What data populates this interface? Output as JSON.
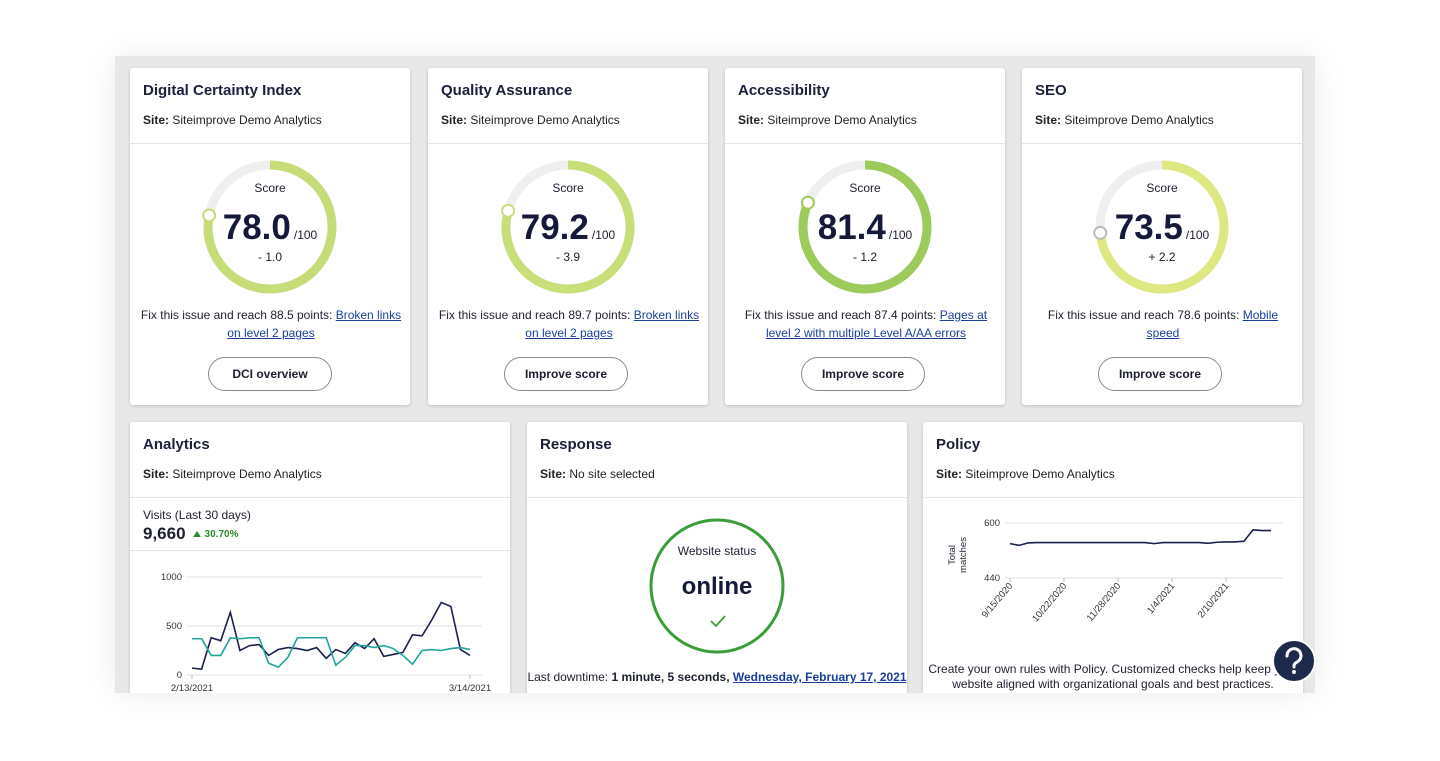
{
  "score_cards": [
    {
      "title": "Digital Certainty Index",
      "site_label": "Site:",
      "site": "Siteimprove Demo Analytics",
      "score_caption": "Score",
      "score": 78,
      "score_label": "78.0",
      "max": 100,
      "max_label": "/100",
      "change": "- 1.0",
      "color": "#c6dc78",
      "fix_text": "Fix this issue and reach 88.5 points:",
      "fix_link": "Broken links on level 2 pages",
      "button": "DCI overview"
    },
    {
      "title": "Quality Assurance",
      "site_label": "Site:",
      "site": "Siteimprove Demo Analytics",
      "score_caption": "Score",
      "score": 79.2,
      "score_label": "79.2",
      "max": 100,
      "max_label": "/100",
      "change": "- 3.9",
      "color": "#c8de78",
      "fix_text": "Fix this issue and reach 89.7 points:",
      "fix_link": "Broken links on level 2 pages",
      "button": "Improve score"
    },
    {
      "title": "Accessibility",
      "site_label": "Site:",
      "site": "Siteimprove Demo Analytics",
      "score_caption": "Score",
      "score": 81.4,
      "score_label": "81.4",
      "max": 100,
      "max_label": "/100",
      "change": "- 1.2",
      "color": "#9ccb5c",
      "fix_text": "Fix this issue and reach 87.4 points:",
      "fix_link": "Pages at level 2 with multiple Level A/AA errors",
      "button": "Improve score"
    },
    {
      "title": "SEO",
      "site_label": "Site:",
      "site": "Siteimprove Demo Analytics",
      "score_caption": "Score",
      "score": 73.5,
      "score_label": "73.5",
      "max": 100,
      "max_label": "/100",
      "change": "+ 2.2",
      "color": "#dde883",
      "fix_text": "Fix this issue and reach 78.6 points:",
      "fix_link": "Mobile speed",
      "button": "Improve score"
    }
  ],
  "analytics": {
    "title": "Analytics",
    "site_label": "Site:",
    "site": "Siteimprove Demo Analytics",
    "metric_label": "Visits (Last 30 days)",
    "metric": "9,660",
    "change": "30.70%",
    "change_color": "#2e8b2e",
    "chart": {
      "type": "line",
      "categories": [
        "2/13/2021",
        null,
        null,
        null,
        null,
        null,
        null,
        null,
        null,
        null,
        null,
        null,
        null,
        null,
        null,
        null,
        null,
        null,
        null,
        null,
        null,
        null,
        null,
        null,
        null,
        null,
        null,
        null,
        null,
        "3/14/2021"
      ],
      "series": [
        {
          "color": "#1b1f4e",
          "values": [
            70,
            60,
            380,
            350,
            640,
            250,
            300,
            310,
            200,
            260,
            280,
            270,
            250,
            280,
            170,
            260,
            220,
            330,
            270,
            370,
            190,
            210,
            230,
            410,
            400,
            560,
            740,
            700,
            260,
            200
          ]
        },
        {
          "color": "#1fa39c",
          "values": [
            370,
            370,
            200,
            200,
            380,
            370,
            380,
            380,
            120,
            80,
            180,
            380,
            380,
            380,
            380,
            100,
            180,
            300,
            300,
            280,
            300,
            270,
            200,
            110,
            250,
            260,
            250,
            270,
            280,
            260
          ]
        }
      ],
      "ylim": [
        0,
        1000
      ],
      "yticks": [
        0,
        500,
        1000
      ],
      "grid": true
    }
  },
  "response": {
    "title": "Response",
    "site_label": "Site:",
    "site": "No site selected",
    "status_label": "Website status",
    "status": "online",
    "status_color": "#3a9d3a",
    "downtime_label": "Last downtime:",
    "downtime": "1 minute, 5 seconds,",
    "downtime_link": "Wednesday, February 17, 2021"
  },
  "policy": {
    "title": "Policy",
    "site_label": "Site:",
    "site": "Siteimprove Demo Analytics",
    "chart": {
      "type": "line",
      "ylabel": "Total matches",
      "categories": [
        "9/15/2020",
        null,
        null,
        null,
        null,
        null,
        "10/22/2020",
        null,
        null,
        null,
        null,
        null,
        "11/28/2020",
        null,
        null,
        null,
        null,
        null,
        "1/4/2021",
        null,
        null,
        null,
        null,
        null,
        "2/10/2021",
        null,
        null,
        null,
        null,
        null
      ],
      "series": [
        {
          "color": "#1b1f4e",
          "values": [
            540,
            535,
            542,
            543,
            543,
            543,
            543,
            543,
            543,
            543,
            543,
            543,
            543,
            543,
            543,
            543,
            540,
            543,
            543,
            543,
            543,
            543,
            541,
            544,
            545,
            545,
            547,
            580,
            578,
            578
          ]
        }
      ],
      "ylim": [
        440,
        600
      ],
      "yticks": [
        440,
        600
      ],
      "grid": true
    },
    "description": [
      "Create your own rules with Policy. Customized checks help keep your",
      "website aligned with organizational goals and best practices."
    ]
  }
}
